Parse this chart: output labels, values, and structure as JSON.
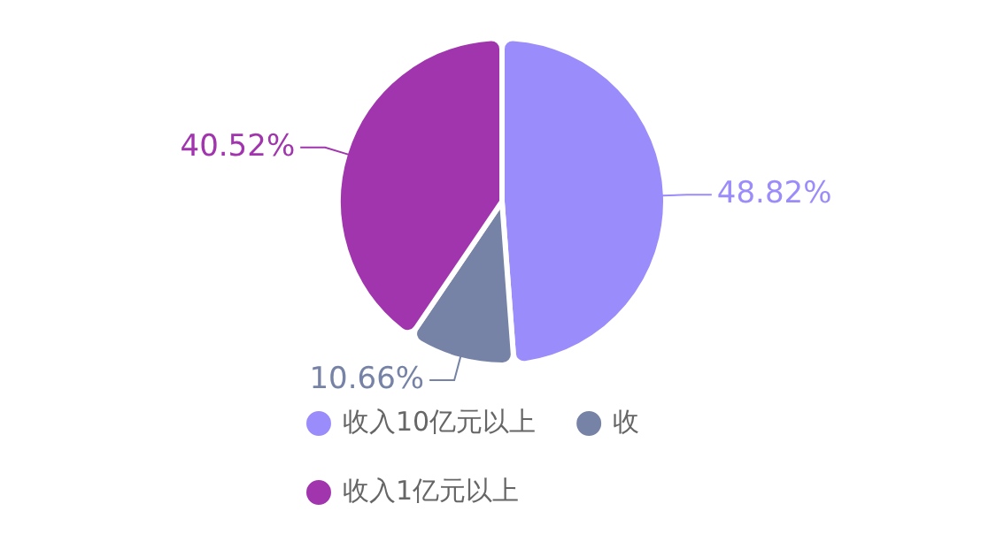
{
  "chart_data": {
    "type": "pie",
    "categories": [
      "收入10亿元以上",
      "收",
      "收入1亿元以上"
    ],
    "values": [
      48.82,
      10.66,
      40.52
    ],
    "colors": [
      "#9b8cfb",
      "#7683a6",
      "#a135ae"
    ],
    "value_labels": [
      "48.82%",
      "10.66%",
      "40.52%"
    ],
    "legend": "bottom"
  }
}
